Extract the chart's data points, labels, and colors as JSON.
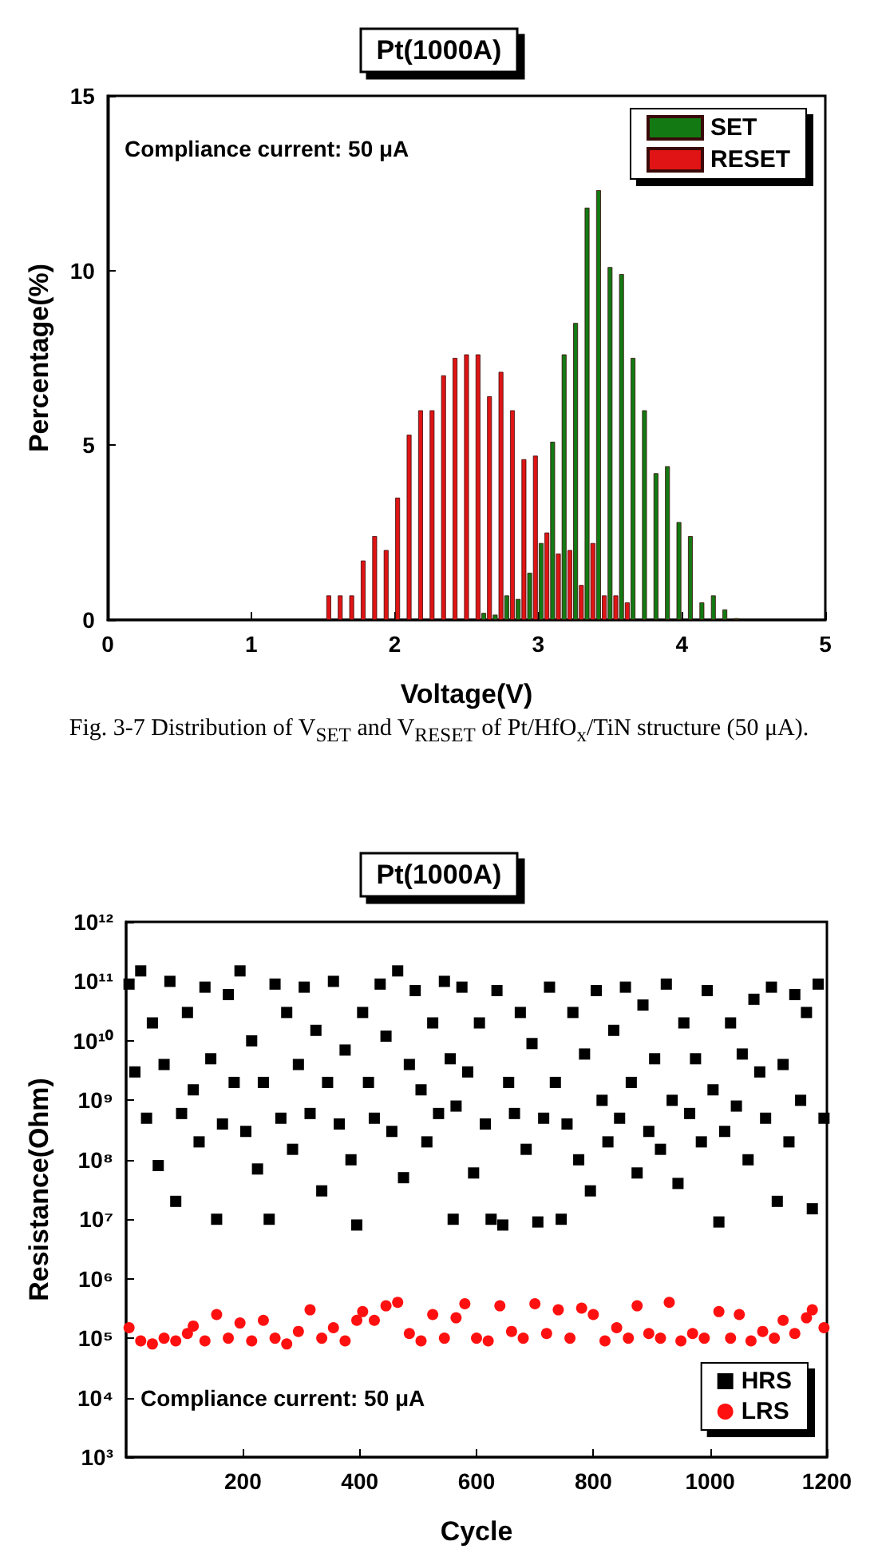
{
  "chart_data": [
    {
      "type": "bar",
      "title": "Pt(1000A)",
      "xlabel": "Voltage(V)",
      "ylabel": "Percentage(%)",
      "annotations": [
        "Compliance current: 50 μA",
        "Fig. 3-7 Distribution of V$_{SET}$ and V$_{RESET}$ of Pt/HfO$_{x}$/TiN structure (50  μA)."
      ],
      "xlim": [
        0,
        5
      ],
      "ylim": [
        0,
        15
      ],
      "xticks": [
        0,
        1,
        2,
        3,
        4,
        5
      ],
      "yticks": [
        0,
        5,
        10,
        15
      ],
      "grid": false,
      "legend": "top right",
      "series": [
        {
          "name": "SET",
          "color": "#137a13",
          "x": [
            2.62,
            2.7,
            2.78,
            2.86,
            2.94,
            3.02,
            3.1,
            3.18,
            3.26,
            3.34,
            3.42,
            3.5,
            3.58,
            3.66,
            3.74,
            3.82,
            3.9,
            3.98,
            4.06,
            4.14,
            4.22,
            4.3,
            4.38
          ],
          "values": [
            0.2,
            0.15,
            0.7,
            0.6,
            1.35,
            2.2,
            5.1,
            7.6,
            8.5,
            11.8,
            12.3,
            10.1,
            9.9,
            7.5,
            6.0,
            4.2,
            4.4,
            2.8,
            2.4,
            0.5,
            0.7,
            0.3,
            0.05
          ]
        },
        {
          "name": "RESET",
          "color": "#e01414",
          "x": [
            1.54,
            1.62,
            1.7,
            1.78,
            1.86,
            1.94,
            2.02,
            2.1,
            2.18,
            2.26,
            2.34,
            2.42,
            2.5,
            2.58,
            2.66,
            2.74,
            2.82,
            2.9,
            2.98,
            3.06,
            3.14,
            3.22,
            3.3,
            3.38,
            3.46,
            3.54,
            3.62
          ],
          "values": [
            0.7,
            0.7,
            0.7,
            1.7,
            2.4,
            2.0,
            3.5,
            5.3,
            6.0,
            6.0,
            7.0,
            7.5,
            7.6,
            7.6,
            6.4,
            7.1,
            6.0,
            4.6,
            4.7,
            2.5,
            1.9,
            2.0,
            1.0,
            2.2,
            0.7,
            0.7,
            0.5
          ]
        }
      ]
    },
    {
      "type": "scatter",
      "title": "Pt(1000A)",
      "xlabel": "Cycle",
      "ylabel": "Resistance(Ohm)",
      "annotations": [
        "Compliance current: 50 μA"
      ],
      "log": "y",
      "xlim": [
        0,
        1200
      ],
      "ylim": [
        1000,
        1000000000000
      ],
      "xticks": [
        200,
        400,
        600,
        800,
        1000,
        1200
      ],
      "yticks": [
        {
          "value": 1000,
          "label": "10³"
        },
        {
          "value": 10000,
          "label": "10⁴"
        },
        {
          "value": 100000,
          "label": "10⁵"
        },
        {
          "value": 1000000,
          "label": "10⁶"
        },
        {
          "value": 10000000,
          "label": "10⁷"
        },
        {
          "value": 100000000,
          "label": "10⁸"
        },
        {
          "value": 1000000000,
          "label": "10⁹"
        },
        {
          "value": 10000000000,
          "label": "10¹⁰"
        },
        {
          "value": 100000000000,
          "label": "10¹¹"
        },
        {
          "value": 1000000000000,
          "label": "10¹²"
        }
      ],
      "grid": false,
      "legend": "bottom right",
      "series": [
        {
          "name": "HRS",
          "color": "#000000",
          "marker": "square",
          "x": [
            5,
            15,
            25,
            35,
            45,
            55,
            65,
            75,
            85,
            95,
            105,
            115,
            125,
            135,
            145,
            155,
            165,
            175,
            185,
            195,
            205,
            215,
            225,
            235,
            245,
            255,
            265,
            275,
            285,
            295,
            305,
            315,
            325,
            335,
            345,
            355,
            365,
            375,
            385,
            395,
            405,
            415,
            425,
            435,
            445,
            455,
            465,
            475,
            485,
            495,
            505,
            515,
            525,
            535,
            545,
            555,
            560,
            565,
            575,
            585,
            595,
            605,
            615,
            625,
            635,
            645,
            655,
            665,
            675,
            685,
            695,
            705,
            715,
            725,
            735,
            745,
            755,
            765,
            775,
            785,
            795,
            805,
            815,
            825,
            835,
            845,
            855,
            865,
            875,
            885,
            895,
            905,
            915,
            925,
            935,
            945,
            955,
            965,
            975,
            985,
            995,
            1005,
            1015,
            1025,
            1035,
            1045,
            1055,
            1065,
            1075,
            1085,
            1095,
            1105,
            1115,
            1125,
            1135,
            1145,
            1155,
            1165,
            1175,
            1185,
            1195
          ],
          "values": [
            90000000000.0,
            3000000000.0,
            150000000000.0,
            500000000.0,
            20000000000.0,
            80000000.0,
            4000000000.0,
            100000000000.0,
            20000000.0,
            600000000.0,
            30000000000.0,
            1500000000.0,
            200000000.0,
            80000000000.0,
            5000000000.0,
            10000000.0,
            400000000.0,
            60000000000.0,
            2000000000.0,
            150000000000.0,
            300000000.0,
            10000000000.0,
            70000000.0,
            2000000000.0,
            10000000.0,
            90000000000.0,
            500000000.0,
            30000000000.0,
            150000000.0,
            4000000000.0,
            80000000000.0,
            600000000.0,
            15000000000.0,
            30000000.0,
            2000000000.0,
            100000000000.0,
            400000000.0,
            7000000000.0,
            100000000.0,
            8000000.0,
            30000000000.0,
            2000000000.0,
            500000000.0,
            90000000000.0,
            12000000000.0,
            300000000.0,
            150000000000.0,
            50000000.0,
            4000000000.0,
            70000000000.0,
            1500000000.0,
            200000000.0,
            20000000000.0,
            600000000.0,
            100000000000.0,
            5000000000.0,
            10000000.0,
            800000000.0,
            80000000000.0,
            3000000000.0,
            60000000.0,
            20000000000.0,
            400000000.0,
            10000000.0,
            70000000000.0,
            8000000.0,
            2000000000.0,
            600000000.0,
            30000000000.0,
            150000000.0,
            9000000000.0,
            9000000.0,
            500000000.0,
            80000000000.0,
            2000000000.0,
            10000000.0,
            400000000.0,
            30000000000.0,
            100000000.0,
            6000000000.0,
            30000000.0,
            70000000000.0,
            1000000000.0,
            200000000.0,
            15000000000.0,
            500000000.0,
            80000000000.0,
            2000000000.0,
            60000000.0,
            40000000000.0,
            300000000.0,
            5000000000.0,
            150000000.0,
            90000000000.0,
            1000000000.0,
            40000000.0,
            20000000000.0,
            600000000.0,
            5000000000.0,
            200000000.0,
            70000000000.0,
            1500000000.0,
            9000000.0,
            300000000.0,
            20000000000.0,
            800000000.0,
            6000000000.0,
            100000000.0,
            50000000000.0,
            3000000000.0,
            500000000.0,
            80000000000.0,
            20000000.0,
            4000000000.0,
            200000000.0,
            60000000000.0,
            1000000000.0,
            30000000000.0,
            15000000.0,
            90000000000.0,
            500000000.0
          ]
        },
        {
          "name": "LRS",
          "color": "#ff1010",
          "marker": "circle",
          "x": [
            5,
            25,
            45,
            65,
            85,
            105,
            115,
            135,
            155,
            175,
            195,
            215,
            235,
            255,
            275,
            295,
            315,
            335,
            355,
            375,
            395,
            405,
            425,
            445,
            465,
            485,
            505,
            525,
            545,
            565,
            580,
            600,
            620,
            640,
            660,
            680,
            700,
            720,
            740,
            760,
            780,
            800,
            820,
            840,
            860,
            875,
            895,
            915,
            930,
            950,
            970,
            990,
            1015,
            1035,
            1050,
            1070,
            1090,
            1110,
            1125,
            1145,
            1165,
            1175,
            1195
          ],
          "values": [
            150000.0,
            90000.0,
            80000.0,
            100000.0,
            90000.0,
            120000.0,
            160000.0,
            90000.0,
            250000.0,
            100000.0,
            180000.0,
            90000.0,
            200000.0,
            100000.0,
            80000.0,
            130000.0,
            300000.0,
            100000.0,
            150000.0,
            90000.0,
            200000.0,
            280000.0,
            200000.0,
            350000.0,
            400000.0,
            120000.0,
            90000.0,
            250000.0,
            100000.0,
            220000.0,
            380000.0,
            100000.0,
            90000.0,
            350000.0,
            130000.0,
            100000.0,
            380000.0,
            120000.0,
            300000.0,
            100000.0,
            320000.0,
            250000.0,
            90000.0,
            150000.0,
            100000.0,
            350000.0,
            120000.0,
            100000.0,
            400000.0,
            90000.0,
            120000.0,
            100000.0,
            280000.0,
            100000.0,
            250000.0,
            90000.0,
            130000.0,
            100000.0,
            200000.0,
            120000.0,
            220000.0,
            300000.0,
            150000.0
          ]
        }
      ]
    }
  ]
}
